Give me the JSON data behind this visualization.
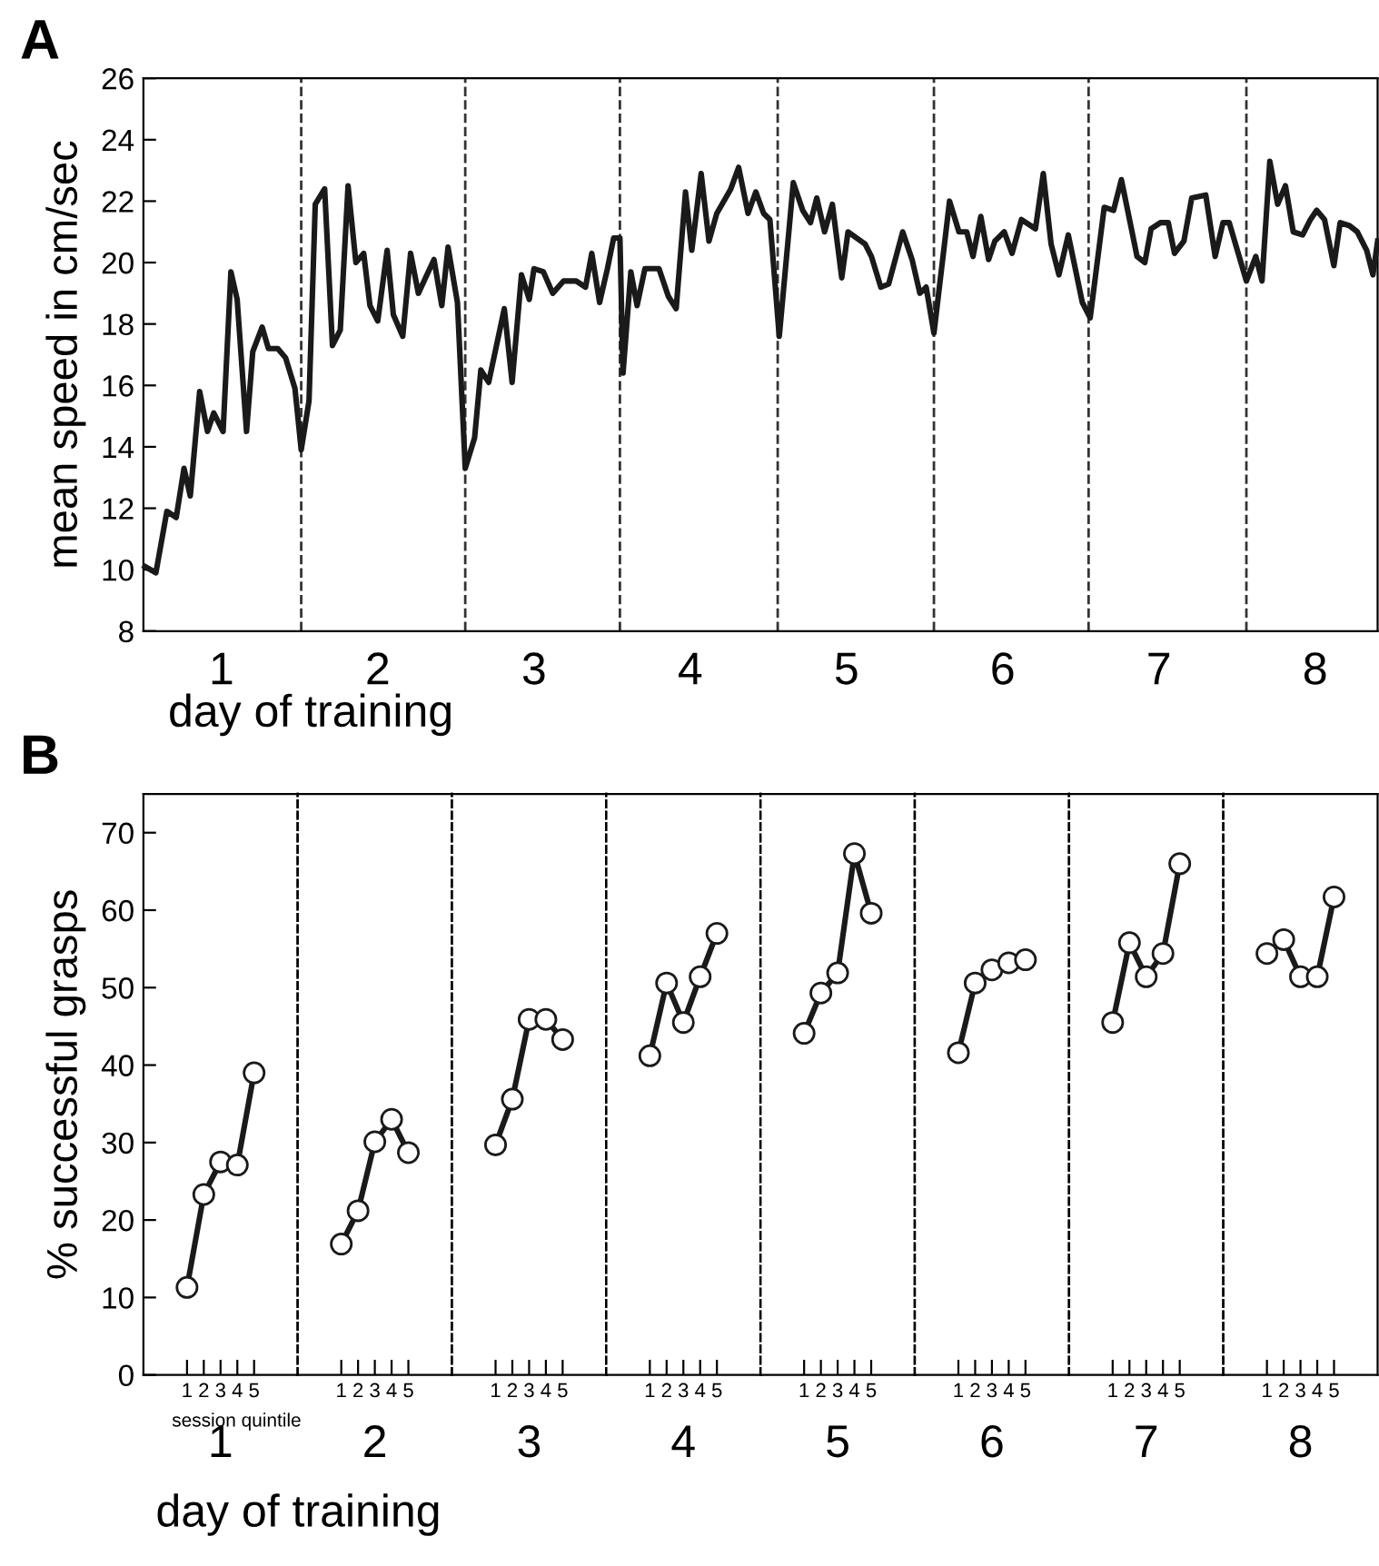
{
  "chart_data": [
    {
      "type": "line",
      "title": "A",
      "ylabel": "mean speed in cm/sec",
      "xlabel": "day of training",
      "series": [
        {
          "color": "#1a1a1a",
          "x": [
            0.51,
            0.58,
            0.65,
            0.71,
            0.76,
            0.8,
            0.86,
            0.91,
            0.95,
            1.01,
            1.06,
            1.1,
            1.16,
            1.2,
            1.26,
            1.3,
            1.36,
            1.41,
            1.47,
            1.51,
            1.56,
            1.6,
            1.66,
            1.71,
            1.76,
            1.81,
            1.86,
            1.91,
            1.95,
            2.0,
            2.06,
            2.1,
            2.16,
            2.21,
            2.26,
            2.36,
            2.41,
            2.45,
            2.51,
            2.56,
            2.62,
            2.66,
            2.71,
            2.81,
            2.86,
            2.92,
            2.97,
            3.0,
            3.06,
            3.12,
            3.19,
            3.27,
            3.33,
            3.37,
            3.42,
            3.47,
            3.51,
            3.55,
            3.57,
            3.62,
            3.66,
            3.71,
            3.8,
            3.86,
            3.91,
            3.97,
            4.01,
            4.07,
            4.12,
            4.17,
            4.26,
            4.31,
            4.37,
            4.42,
            4.47,
            4.51,
            4.57,
            4.66,
            4.72,
            4.77,
            4.81,
            4.86,
            4.91,
            4.97,
            5.01,
            5.12,
            5.16,
            5.22,
            5.27,
            5.36,
            5.42,
            5.47,
            5.51,
            5.56,
            5.66,
            5.72,
            5.77,
            5.81,
            5.86,
            5.91,
            5.95,
            6.01,
            6.06,
            6.12,
            6.21,
            6.26,
            6.31,
            6.36,
            6.42,
            6.51,
            6.56,
            6.65,
            6.71,
            6.76,
            6.86,
            6.91,
            6.95,
            7.01,
            7.06,
            7.1,
            7.16,
            7.21,
            7.3,
            7.36,
            7.41,
            7.45,
            7.56,
            7.62,
            7.66,
            7.71,
            7.76,
            7.81,
            7.86,
            7.92,
            7.97,
            8.01,
            8.06,
            8.12,
            8.16,
            8.22,
            8.27,
            8.33,
            8.37,
            8.4
          ],
          "values": [
            10.1,
            9.9,
            11.9,
            11.7,
            13.3,
            12.4,
            15.8,
            14.5,
            15.1,
            14.5,
            19.7,
            18.8,
            14.5,
            17.1,
            17.9,
            17.2,
            17.2,
            16.9,
            15.9,
            13.9,
            15.5,
            21.9,
            22.4,
            17.3,
            17.8,
            22.5,
            20.0,
            20.3,
            18.6,
            18.1,
            20.4,
            18.3,
            17.6,
            20.3,
            19.0,
            20.1,
            18.6,
            20.5,
            18.7,
            13.3,
            14.3,
            16.5,
            16.1,
            18.5,
            16.1,
            19.6,
            18.8,
            19.8,
            19.7,
            19.0,
            19.4,
            19.4,
            19.2,
            20.3,
            18.7,
            19.8,
            20.8,
            20.8,
            16.4,
            19.7,
            18.6,
            19.8,
            19.8,
            18.9,
            18.5,
            22.3,
            20.4,
            22.9,
            20.7,
            21.6,
            22.4,
            23.1,
            21.6,
            22.3,
            21.6,
            21.4,
            17.6,
            22.6,
            21.7,
            21.3,
            22.1,
            21.0,
            21.9,
            19.5,
            21.0,
            20.6,
            20.2,
            19.2,
            19.3,
            21.0,
            20.1,
            19.0,
            19.2,
            17.7,
            22.0,
            21.0,
            21.0,
            20.2,
            21.5,
            20.1,
            20.7,
            21.0,
            20.3,
            21.4,
            21.1,
            22.9,
            20.6,
            19.6,
            20.9,
            18.7,
            18.2,
            21.8,
            21.7,
            22.7,
            20.2,
            20.0,
            21.1,
            21.3,
            21.3,
            20.3,
            20.7,
            22.1,
            22.2,
            20.2,
            21.3,
            21.3,
            19.4,
            20.2,
            19.4,
            23.3,
            21.9,
            22.5,
            21.0,
            20.9,
            21.4,
            21.7,
            21.4,
            19.9,
            21.3,
            21.2,
            21.0,
            20.4,
            19.6,
            20.7
          ]
        }
      ],
      "xlim": [
        0.5,
        8.4
      ],
      "xticks": [
        1,
        2,
        3,
        4,
        5,
        6,
        7,
        8
      ],
      "ylim": [
        8,
        26
      ],
      "yticks": [
        8,
        10,
        12,
        14,
        16,
        18,
        20,
        22,
        24,
        26
      ],
      "ref_lines": [
        {
          "axis": "x",
          "value": 1.51,
          "color": "#333333",
          "line_style": "dashed"
        },
        {
          "axis": "x",
          "value": 2.56,
          "color": "#333333",
          "line_style": "dashed"
        },
        {
          "axis": "x",
          "value": 3.55,
          "color": "#333333",
          "line_style": "dashed"
        },
        {
          "axis": "x",
          "value": 4.56,
          "color": "#333333",
          "line_style": "dashed"
        },
        {
          "axis": "x",
          "value": 5.56,
          "color": "#333333",
          "line_style": "dashed"
        },
        {
          "axis": "x",
          "value": 6.55,
          "color": "#333333",
          "line_style": "dashed"
        },
        {
          "axis": "x",
          "value": 7.56,
          "color": "#333333",
          "line_style": "dashed"
        }
      ],
      "marker": "none",
      "line_style": "solid"
    },
    {
      "type": "line",
      "title": "B",
      "ylabel": "% successful grasps",
      "xlabel": "1",
      "annotations": [
        "session quintile",
        "day of training"
      ],
      "categories": [
        "1",
        "2",
        "3",
        "4",
        "5"
      ],
      "series": [
        {
          "color": "#1a1a1a",
          "values": [
            11.3,
            23.3,
            27.5,
            27.1,
            39.0
          ]
        }
      ],
      "ylim": [
        0,
        75
      ],
      "yticks": [
        0,
        10,
        20,
        30,
        40,
        50,
        60,
        70
      ],
      "marker": "circle",
      "line_style": "solid"
    },
    {
      "type": "line",
      "xlabel": "2",
      "categories": [
        "1",
        "2",
        "3",
        "4",
        "5"
      ],
      "series": [
        {
          "color": "#1a1a1a",
          "values": [
            16.9,
            21.2,
            30.1,
            33.0,
            28.7
          ]
        }
      ],
      "ylim": [
        0,
        75
      ],
      "yticks": [
        0,
        10,
        20,
        30,
        40,
        50,
        60,
        70
      ],
      "tick_labels": "x",
      "marker": "circle",
      "line_style": "solid"
    },
    {
      "type": "line",
      "xlabel": "3",
      "categories": [
        "1",
        "2",
        "3",
        "4",
        "5"
      ],
      "series": [
        {
          "color": "#1a1a1a",
          "values": [
            29.7,
            35.6,
            45.9,
            45.9,
            43.3
          ]
        }
      ],
      "ylim": [
        0,
        75
      ],
      "yticks": [
        0,
        10,
        20,
        30,
        40,
        50,
        60,
        70
      ],
      "tick_labels": "x",
      "marker": "circle",
      "line_style": "solid"
    },
    {
      "type": "line",
      "xlabel": "4",
      "categories": [
        "1",
        "2",
        "3",
        "4",
        "5"
      ],
      "series": [
        {
          "color": "#1a1a1a",
          "values": [
            41.2,
            50.6,
            45.5,
            51.4,
            57.0
          ]
        }
      ],
      "ylim": [
        0,
        75
      ],
      "yticks": [
        0,
        10,
        20,
        30,
        40,
        50,
        60,
        70
      ],
      "tick_labels": "x",
      "marker": "circle",
      "line_style": "solid"
    },
    {
      "type": "line",
      "xlabel": "5",
      "categories": [
        "1",
        "2",
        "3",
        "4",
        "5"
      ],
      "series": [
        {
          "color": "#1a1a1a",
          "values": [
            44.1,
            49.3,
            51.9,
            67.3,
            59.6
          ]
        }
      ],
      "ylim": [
        0,
        75
      ],
      "yticks": [
        0,
        10,
        20,
        30,
        40,
        50,
        60,
        70
      ],
      "tick_labels": "x",
      "marker": "circle",
      "line_style": "solid"
    },
    {
      "type": "line",
      "xlabel": "6",
      "categories": [
        "1",
        "2",
        "3",
        "4",
        "5"
      ],
      "series": [
        {
          "color": "#1a1a1a",
          "values": [
            41.6,
            50.6,
            52.3,
            53.2,
            53.6
          ]
        }
      ],
      "ylim": [
        0,
        75
      ],
      "yticks": [
        0,
        10,
        20,
        30,
        40,
        50,
        60,
        70
      ],
      "tick_labels": "x",
      "marker": "circle",
      "line_style": "solid"
    },
    {
      "type": "line",
      "xlabel": "7",
      "categories": [
        "1",
        "2",
        "3",
        "4",
        "5"
      ],
      "series": [
        {
          "color": "#1a1a1a",
          "values": [
            45.5,
            55.8,
            51.4,
            54.4,
            66.0
          ]
        }
      ],
      "ylim": [
        0,
        75
      ],
      "yticks": [
        0,
        10,
        20,
        30,
        40,
        50,
        60,
        70
      ],
      "tick_labels": "x",
      "marker": "circle",
      "line_style": "solid"
    },
    {
      "type": "line",
      "xlabel": "8",
      "categories": [
        "1",
        "2",
        "3",
        "4",
        "5"
      ],
      "series": [
        {
          "color": "#1a1a1a",
          "values": [
            54.4,
            56.2,
            51.4,
            51.4,
            61.7
          ]
        }
      ],
      "ylim": [
        0,
        75
      ],
      "yticks": [
        0,
        10,
        20,
        30,
        40,
        50,
        60,
        70
      ],
      "tick_labels": "x",
      "marker": "circle",
      "line_style": "solid"
    }
  ]
}
